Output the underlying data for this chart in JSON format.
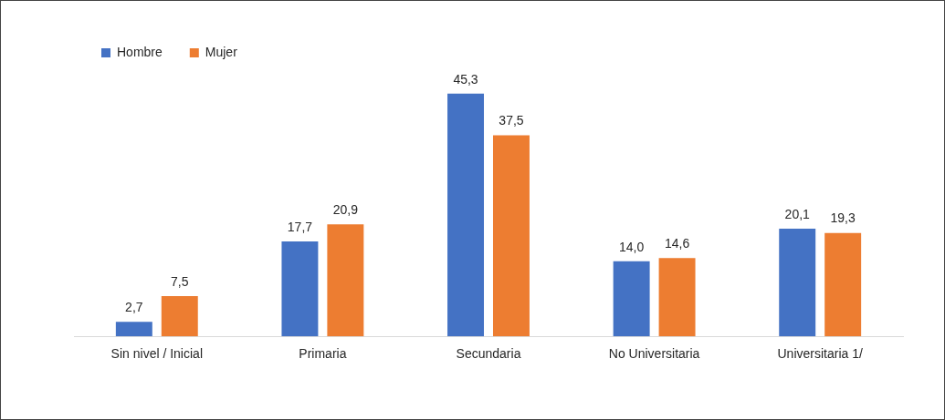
{
  "chart_data": {
    "type": "bar",
    "categories": [
      "Sin nivel / Inicial",
      "Primaria",
      "Secundaria",
      "No Universitaria",
      "Universitaria 1/"
    ],
    "series": [
      {
        "name": "Hombre",
        "color": "#4472c4",
        "values": [
          2.7,
          17.7,
          45.3,
          14.0,
          20.1
        ],
        "value_labels": [
          "2,7",
          "17,7",
          "45,3",
          "14,0",
          "20,1"
        ]
      },
      {
        "name": "Mujer",
        "color": "#ed7d31",
        "values": [
          7.5,
          20.9,
          37.5,
          14.6,
          19.3
        ],
        "value_labels": [
          "7,5",
          "20,9",
          "37,5",
          "14,6",
          "19,3"
        ]
      }
    ],
    "legend": "top left",
    "grid": false
  }
}
